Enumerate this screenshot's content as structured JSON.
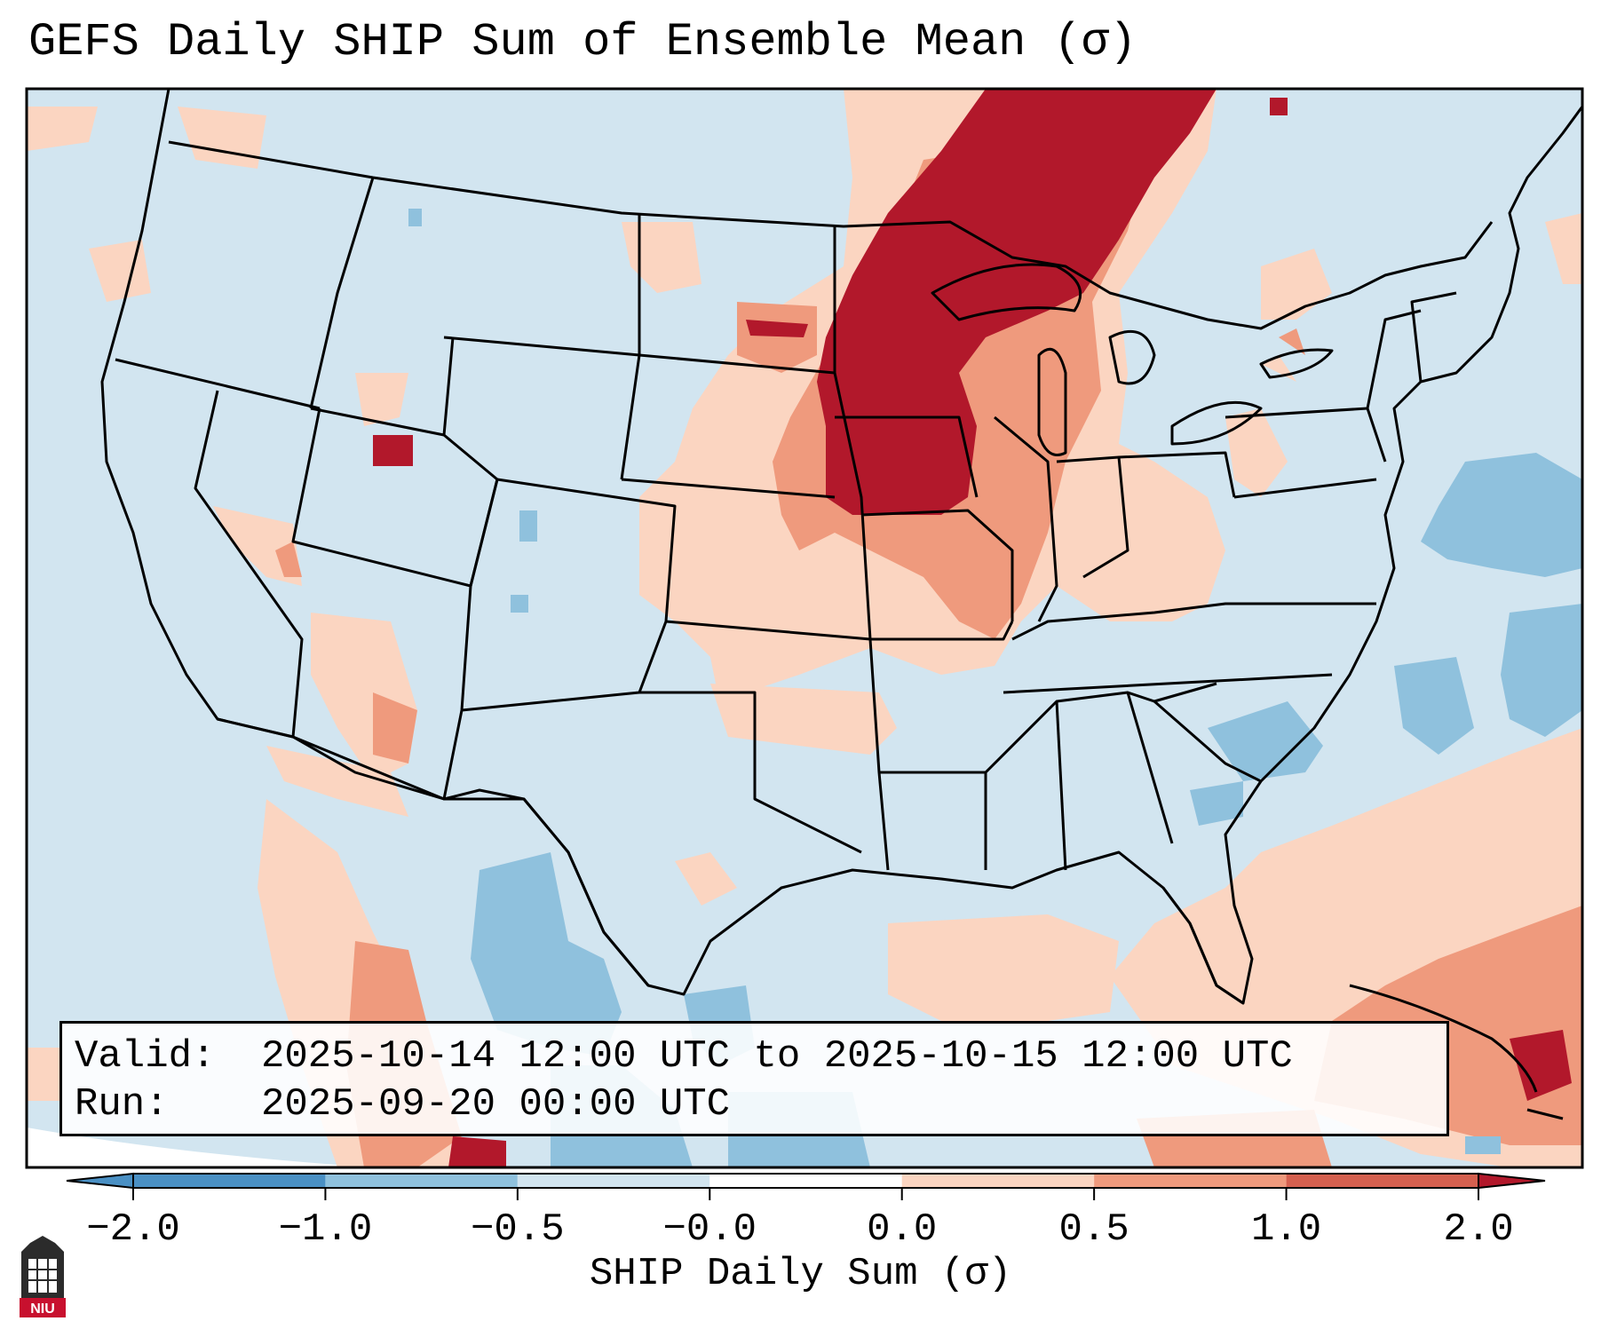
{
  "title": "GEFS Daily SHIP Sum of Ensemble Mean (σ)",
  "info": {
    "valid_label": "Valid:",
    "valid_value": "2025-10-14 12:00 UTC to 2025-10-15 12:00 UTC",
    "run_label": "Run:",
    "run_value": "2025-09-20 00:00 UTC"
  },
  "colorbar": {
    "label": "SHIP Daily Sum (σ)",
    "ticks": [
      "−2.0",
      "−1.0",
      "−0.5",
      "−0.0",
      "0.0",
      "0.5",
      "1.0",
      "2.0"
    ],
    "colors": [
      "#4a90c4",
      "#8fc1dd",
      "#d2e5f0",
      "#ffffff",
      "#fbd5c1",
      "#ef9a7d",
      "#d5604f",
      "#b2182b"
    ],
    "extend": "both"
  },
  "map": {
    "region": "Contiguous United States",
    "background_category_color": "#d2e5f0",
    "land_outline_color": "#000000"
  },
  "logo": {
    "text": "NIU"
  }
}
